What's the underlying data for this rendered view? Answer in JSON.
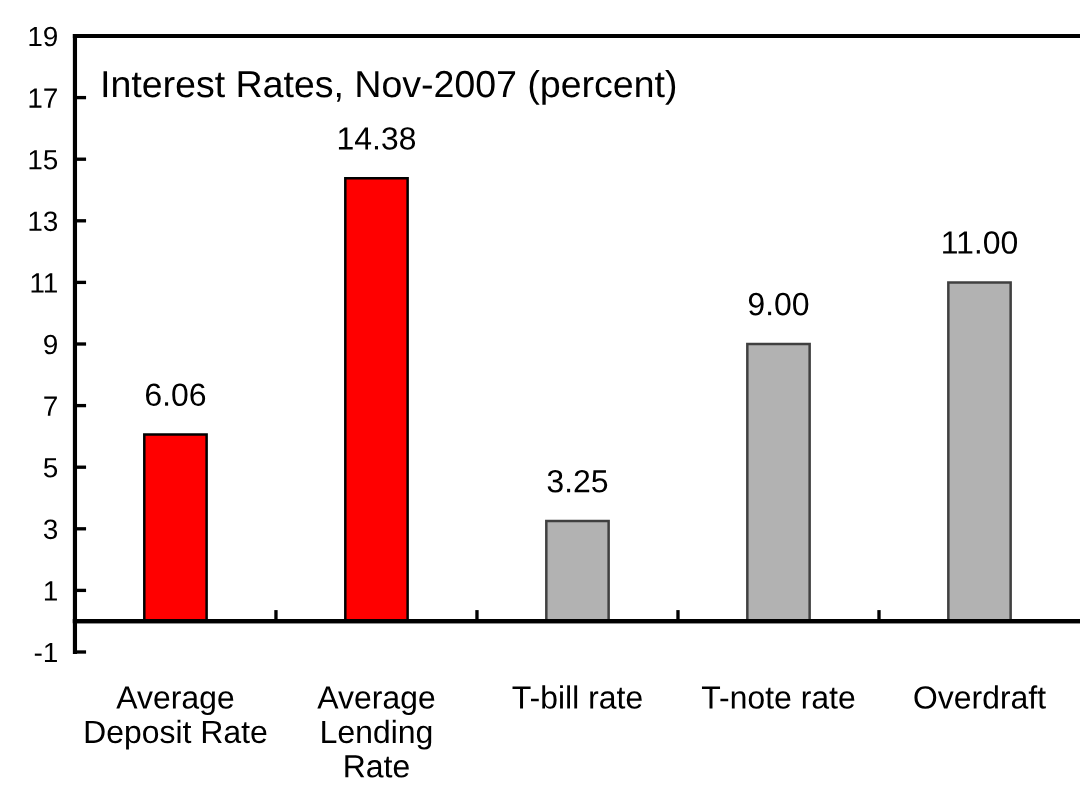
{
  "chart_data": {
    "type": "bar",
    "title": "Interest Rates, Nov-2007 (percent)",
    "categories": [
      "Average\nDeposit Rate",
      "Average\nLending\nRate",
      "T-bill rate",
      "T-note rate",
      "Overdraft"
    ],
    "values": [
      6.06,
      14.38,
      3.25,
      9.0,
      11.0
    ],
    "colors": [
      "#ff0000",
      "#ff0000",
      "#b2b2b2",
      "#b2b2b2",
      "#b2b2b2"
    ],
    "value_labels": [
      "6.06",
      "14.38",
      "3.25",
      "9.00",
      "11.00"
    ],
    "ylim": [
      -1,
      19
    ],
    "yticks": [
      -1,
      1,
      3,
      5,
      7,
      9,
      11,
      13,
      15,
      17,
      19
    ],
    "grid": false,
    "legend": false
  }
}
